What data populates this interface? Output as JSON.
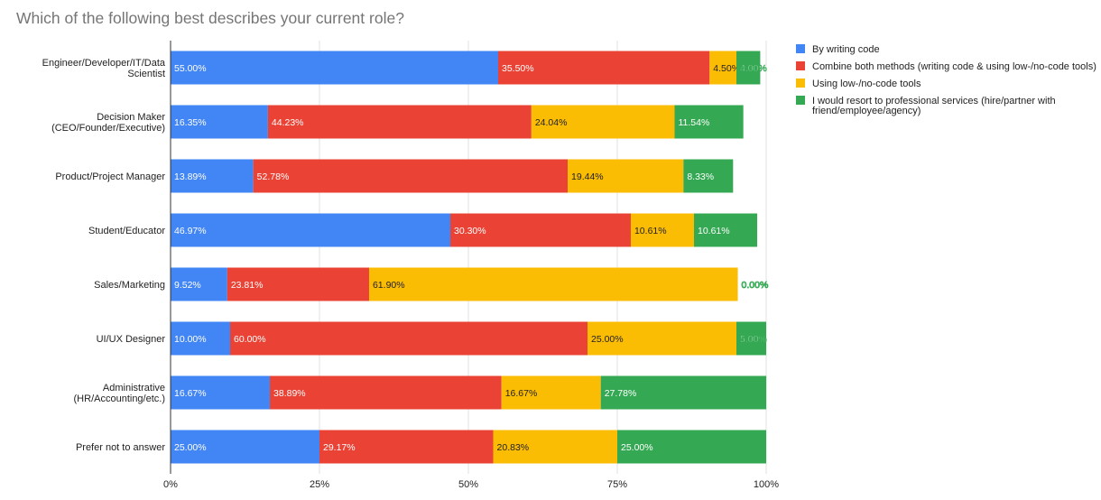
{
  "chart_data": {
    "type": "bar",
    "orientation": "horizontal",
    "stacked": "percent",
    "title": "Which of the following best describes your current role?",
    "xlabel": "",
    "ylabel": "",
    "xlim": [
      0,
      100
    ],
    "x_ticks": [
      "0%",
      "25%",
      "50%",
      "75%",
      "100%"
    ],
    "grid": true,
    "legend_position": "right",
    "categories": [
      [
        "Engineer/Developer/IT/Data",
        "Scientist"
      ],
      [
        "Decision Maker",
        "(CEO/Founder/Executive)"
      ],
      [
        "Product/Project Manager"
      ],
      [
        "Student/Educator"
      ],
      [
        "Sales/Marketing"
      ],
      [
        "UI/UX Designer"
      ],
      [
        "Administrative",
        "(HR/Accounting/etc.)"
      ],
      [
        "Prefer not to answer"
      ]
    ],
    "series": [
      {
        "name": "By writing code",
        "color": "#4285F4",
        "label_color": "#ffffff",
        "values": [
          55.0,
          16.35,
          13.89,
          46.97,
          9.52,
          10.0,
          16.67,
          25.0
        ],
        "labels": [
          "55.00%",
          "16.35%",
          "13.89%",
          "46.97%",
          "9.52%",
          "10.00%",
          "16.67%",
          "25.00%"
        ]
      },
      {
        "name": "Combine both methods (writing code & using low-/no-code tools)",
        "color": "#EA4335",
        "label_color": "#ffffff",
        "values": [
          35.5,
          44.23,
          52.78,
          30.3,
          23.81,
          60.0,
          38.89,
          29.17
        ],
        "labels": [
          "35.50%",
          "44.23%",
          "52.78%",
          "30.30%",
          "23.81%",
          "60.00%",
          "38.89%",
          "29.17%"
        ]
      },
      {
        "name": "Using low-/no-code tools",
        "color": "#FBBC04",
        "label_color": "#222222",
        "values": [
          4.5,
          24.04,
          19.44,
          10.61,
          61.9,
          25.0,
          16.67,
          20.83
        ],
        "labels": [
          "4.50%",
          "24.04%",
          "19.44%",
          "10.61%",
          "61.90%",
          "25.00%",
          "16.67%",
          "20.83%"
        ]
      },
      {
        "name": "I would resort to professional services (hire/partner with friend/employee/agency)",
        "legend_lines": [
          "I would resort to professional services (hire/partner with",
          "friend/employee/agency)"
        ],
        "color": "#34A853",
        "label_color": "#ffffff",
        "values": [
          4.0,
          11.54,
          8.33,
          10.61,
          0.0,
          5.0,
          27.78,
          25.0
        ],
        "labels": [
          "4.00%",
          "11.54%",
          "8.33%",
          "10.61%",
          "0.00%",
          "5.00%",
          "27.78%",
          "25.00%"
        ]
      }
    ]
  }
}
